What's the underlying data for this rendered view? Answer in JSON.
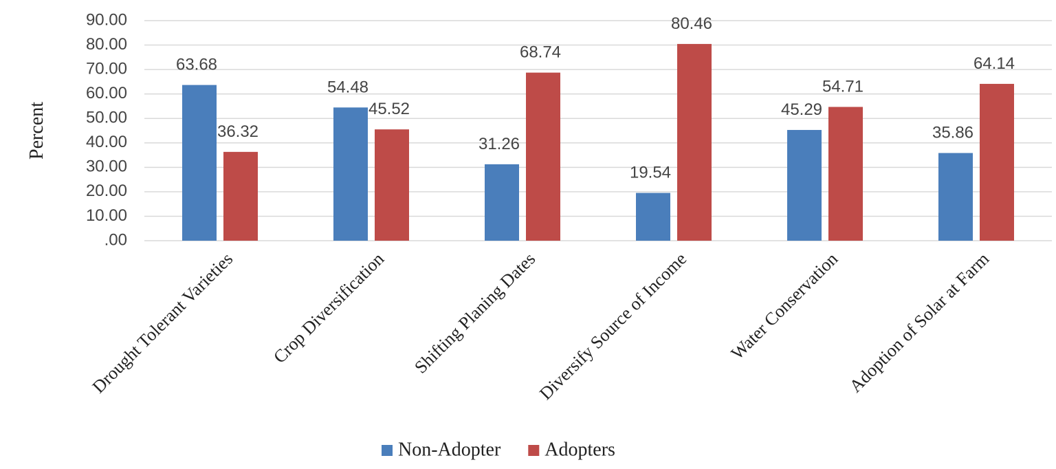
{
  "chart_data": {
    "type": "bar",
    "y_label": "Percent",
    "categories": [
      "Drought Tolerant Varieties",
      "Crop Diversification",
      "Shifting Planing Dates",
      "Diversify Source of Income",
      "Water Conservation",
      "Adoption of Solar at Farm"
    ],
    "series": [
      {
        "name": "Non-Adopter",
        "color": "#4a7ebb",
        "values": [
          63.68,
          54.48,
          31.26,
          19.54,
          45.29,
          35.86
        ]
      },
      {
        "name": "Adopters",
        "color": "#be4b48",
        "values": [
          36.32,
          45.52,
          68.74,
          80.46,
          54.71,
          64.14
        ]
      }
    ],
    "ylim": [
      0,
      90
    ],
    "yticks": [
      {
        "value": 0,
        "label": ".00"
      },
      {
        "value": 10,
        "label": "10.00"
      },
      {
        "value": 20,
        "label": "20.00"
      },
      {
        "value": 30,
        "label": "30.00"
      },
      {
        "value": 40,
        "label": "40.00"
      },
      {
        "value": 50,
        "label": "50.00"
      },
      {
        "value": 60,
        "label": "60.00"
      },
      {
        "value": 70,
        "label": "70.00"
      },
      {
        "value": 80,
        "label": "80.00"
      },
      {
        "value": 90,
        "label": "90.00"
      }
    ],
    "grid": true,
    "legend": "bottom"
  }
}
